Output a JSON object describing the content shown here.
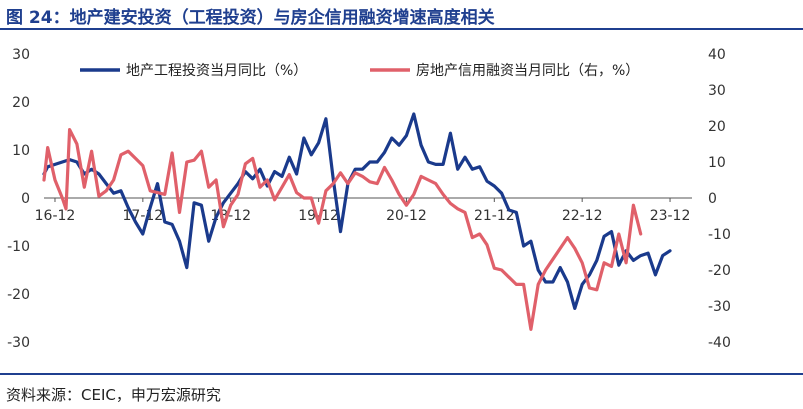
{
  "header": {
    "title": "图 24：地产建安投资（工程投资）与房企信用融资增速高度相关"
  },
  "footer": {
    "source": "资料来源：CEIC，申万宏源研究"
  },
  "chart_data": {
    "type": "line",
    "title": "图 24：地产建安投资（工程投资）与房企信用融资增速高度相关",
    "x_tick_labels": [
      "16-12",
      "17-12",
      "18-12",
      "19-12",
      "20-12",
      "21-12",
      "22-12",
      "23-12"
    ],
    "x_tick_months": [
      0,
      12,
      24,
      36,
      48,
      60,
      72,
      84
    ],
    "x_range": [
      -1.5,
      87
    ],
    "y_left": {
      "range": [
        -30,
        30
      ],
      "ticks": [
        -30,
        -20,
        -10,
        0,
        10,
        20,
        30
      ]
    },
    "y_right": {
      "range": [
        -40,
        40
      ],
      "ticks": [
        -40,
        -30,
        -20,
        -10,
        0,
        10,
        20,
        30,
        40
      ]
    },
    "grid": false,
    "legend": "top",
    "series": [
      {
        "name": "地产工程投资当月同比（%）",
        "axis": "left",
        "color": "#1a3a8c",
        "points": [
          [
            -1.5,
            5
          ],
          [
            -1,
            6.5
          ],
          [
            0,
            7
          ],
          [
            1,
            7.5
          ],
          [
            2,
            8
          ],
          [
            3,
            7.5
          ],
          [
            4,
            5
          ],
          [
            5,
            6
          ],
          [
            6,
            5
          ],
          [
            7,
            3
          ],
          [
            8,
            1
          ],
          [
            9,
            1.5
          ],
          [
            10,
            -2
          ],
          [
            11,
            -5
          ],
          [
            12,
            -7.5
          ],
          [
            13,
            -2
          ],
          [
            14,
            3
          ],
          [
            15,
            -5
          ],
          [
            16,
            -5.5
          ],
          [
            17,
            -9
          ],
          [
            18,
            -14.5
          ],
          [
            19,
            -1
          ],
          [
            20,
            -1.5
          ],
          [
            21,
            -9
          ],
          [
            22,
            -4
          ],
          [
            23,
            -1
          ],
          [
            24,
            1
          ],
          [
            25,
            3
          ],
          [
            26,
            5.5
          ],
          [
            27,
            4
          ],
          [
            28,
            6
          ],
          [
            29,
            2.5
          ],
          [
            30,
            5.5
          ],
          [
            31,
            4.5
          ],
          [
            32,
            8.5
          ],
          [
            33,
            5
          ],
          [
            34,
            12.5
          ],
          [
            35,
            9
          ],
          [
            36,
            11.5
          ],
          [
            37,
            16.5
          ],
          [
            38,
            4
          ],
          [
            39,
            -7
          ],
          [
            40,
            3
          ],
          [
            41,
            6
          ],
          [
            42,
            6
          ],
          [
            43,
            7.5
          ],
          [
            44,
            7.5
          ],
          [
            45,
            9.5
          ],
          [
            46,
            12.5
          ],
          [
            47,
            11
          ],
          [
            48,
            13
          ],
          [
            49,
            17.5
          ],
          [
            50,
            11
          ],
          [
            51,
            7.5
          ],
          [
            52,
            7
          ],
          [
            53,
            7
          ],
          [
            54,
            13.5
          ],
          [
            55,
            6
          ],
          [
            56,
            8.5
          ],
          [
            57,
            6
          ],
          [
            58,
            6.5
          ],
          [
            59,
            3.5
          ],
          [
            60,
            2.5
          ],
          [
            61,
            1
          ],
          [
            62,
            -2.5
          ],
          [
            63,
            -3
          ],
          [
            64,
            -10
          ],
          [
            65,
            -9
          ],
          [
            66,
            -15
          ],
          [
            67,
            -17.5
          ],
          [
            68,
            -17.5
          ],
          [
            69,
            -14.5
          ],
          [
            70,
            -17.5
          ],
          [
            71,
            -23
          ],
          [
            72,
            -18
          ],
          [
            73,
            -16
          ],
          [
            74,
            -13
          ],
          [
            75,
            -8
          ],
          [
            76,
            -7
          ],
          [
            77,
            -14
          ],
          [
            78,
            -11
          ],
          [
            79,
            -13
          ],
          [
            80,
            -12
          ],
          [
            81,
            -11.5
          ],
          [
            82,
            -16
          ],
          [
            83,
            -12
          ],
          [
            84,
            -11
          ]
        ]
      },
      {
        "name": "房地产信用融资当月同比（右，%）",
        "axis": "right",
        "color": "#e0606a",
        "points": [
          [
            -1.5,
            5
          ],
          [
            -1,
            14
          ],
          [
            0,
            5
          ],
          [
            1,
            0
          ],
          [
            1.5,
            -3
          ],
          [
            2,
            19
          ],
          [
            3,
            15
          ],
          [
            4,
            3
          ],
          [
            5,
            13
          ],
          [
            6,
            0.5
          ],
          [
            7,
            2
          ],
          [
            8,
            5
          ],
          [
            9,
            12
          ],
          [
            10,
            13
          ],
          [
            11,
            11
          ],
          [
            12,
            9
          ],
          [
            13,
            2
          ],
          [
            14,
            1.5
          ],
          [
            15,
            1
          ],
          [
            16,
            12.5
          ],
          [
            17,
            -4
          ],
          [
            18,
            10
          ],
          [
            19,
            10.5
          ],
          [
            20,
            13
          ],
          [
            21,
            3
          ],
          [
            22,
            5
          ],
          [
            23,
            -8
          ],
          [
            24,
            -2
          ],
          [
            25,
            1
          ],
          [
            26,
            9.5
          ],
          [
            27,
            11
          ],
          [
            28,
            3
          ],
          [
            29,
            5
          ],
          [
            30,
            -0.5
          ],
          [
            31,
            3
          ],
          [
            32,
            6.5
          ],
          [
            33,
            1.5
          ],
          [
            34,
            0
          ],
          [
            35,
            0
          ],
          [
            36,
            -7
          ],
          [
            37,
            2
          ],
          [
            38,
            4
          ],
          [
            39,
            7
          ],
          [
            40,
            4
          ],
          [
            41,
            7
          ],
          [
            42,
            6
          ],
          [
            43,
            4.5
          ],
          [
            44,
            4
          ],
          [
            45,
            8.5
          ],
          [
            46,
            5
          ],
          [
            47,
            1
          ],
          [
            48,
            -2
          ],
          [
            49,
            1
          ],
          [
            50,
            6
          ],
          [
            51,
            5
          ],
          [
            52,
            4
          ],
          [
            53,
            1
          ],
          [
            54,
            -1.5
          ],
          [
            55,
            -3
          ],
          [
            56,
            -4
          ],
          [
            57,
            -11
          ],
          [
            58,
            -10
          ],
          [
            59,
            -13
          ],
          [
            60,
            -19.5
          ],
          [
            61,
            -20
          ],
          [
            62,
            -22
          ],
          [
            63,
            -24
          ],
          [
            64,
            -24
          ],
          [
            65,
            -36.5
          ],
          [
            66,
            -24
          ],
          [
            67,
            -20
          ],
          [
            68,
            -17
          ],
          [
            69,
            -14
          ],
          [
            70,
            -11
          ],
          [
            71,
            -14
          ],
          [
            72,
            -18
          ],
          [
            73,
            -25
          ],
          [
            74,
            -25.5
          ],
          [
            75,
            -18
          ],
          [
            76,
            -19
          ],
          [
            77,
            -10
          ],
          [
            78,
            -18
          ],
          [
            79,
            -2
          ],
          [
            80,
            -10
          ]
        ]
      }
    ]
  }
}
